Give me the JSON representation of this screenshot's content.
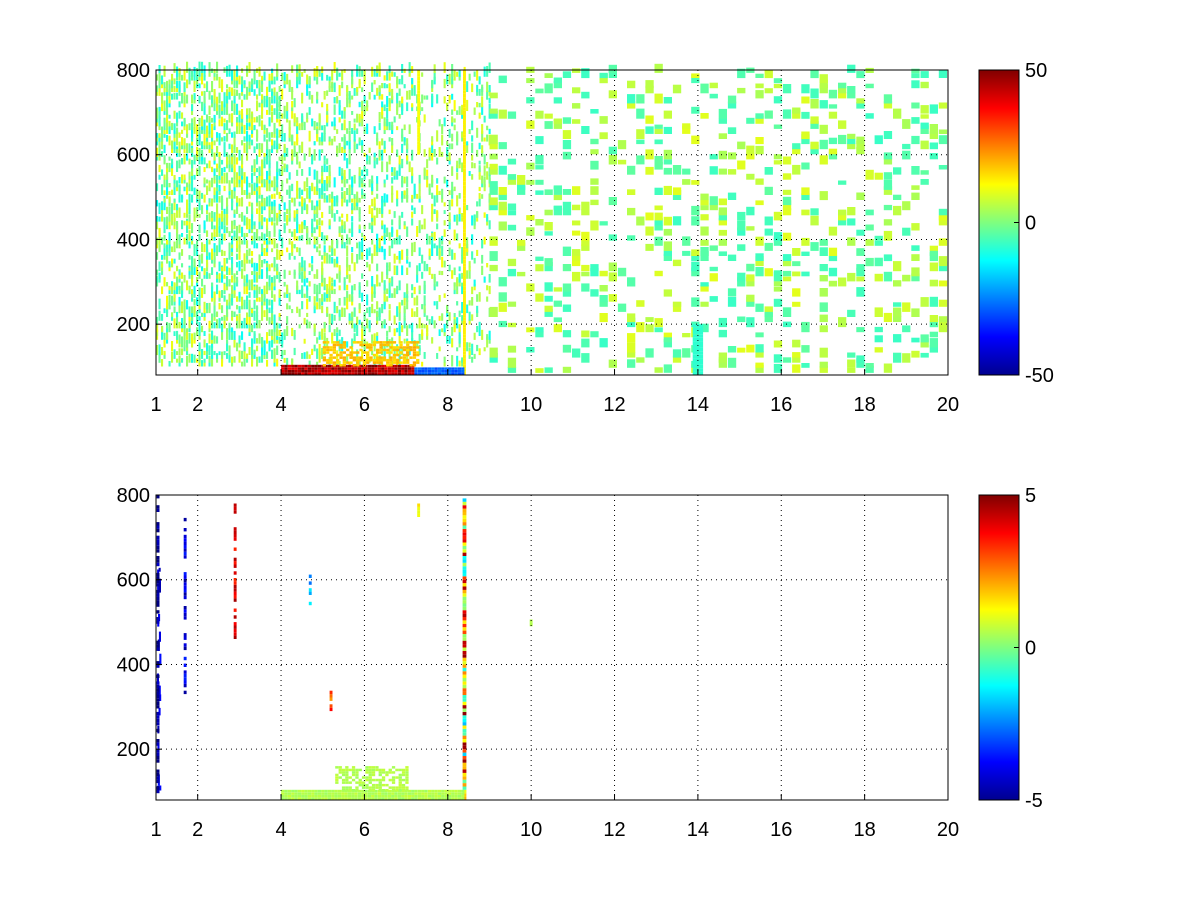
{
  "chart_data": [
    {
      "type": "heatmap",
      "title": "",
      "xlabel": "",
      "ylabel": "",
      "xlim": [
        1,
        20
      ],
      "ylim": [
        80,
        800
      ],
      "xticks": [
        1,
        2,
        4,
        6,
        8,
        10,
        12,
        14,
        16,
        18,
        20
      ],
      "yticks": [
        200,
        400,
        600,
        800
      ],
      "grid": true,
      "colormap": "jet",
      "colorbar": {
        "min": -50,
        "max": 50,
        "ticks": [
          50,
          0,
          -50
        ]
      },
      "description_values": {
        "sparse_scatter_range": [
          -12,
          12
        ],
        "x_dense_region": [
          1,
          9
        ],
        "x_sparse_region": [
          9,
          20
        ]
      },
      "features": [
        {
          "kind": "vertical_band",
          "x": 8.4,
          "y": [
            80,
            800
          ],
          "value": 14
        },
        {
          "kind": "vertical_band",
          "x": 7.3,
          "y": [
            600,
            800
          ],
          "value": 12
        },
        {
          "kind": "low_band_hot",
          "x": [
            4.0,
            7.2
          ],
          "y": [
            80,
            100
          ],
          "value": 45
        },
        {
          "kind": "low_band_warm",
          "x": [
            5.0,
            7.3
          ],
          "y": [
            100,
            160
          ],
          "value": 18
        },
        {
          "kind": "low_band_cold",
          "x": [
            7.2,
            8.4
          ],
          "y": [
            80,
            95
          ],
          "value": -28
        },
        {
          "kind": "cyan_column",
          "x": 14.0,
          "y": [
            80,
            200
          ],
          "value": -8
        }
      ]
    },
    {
      "type": "heatmap",
      "title": "",
      "xlabel": "",
      "ylabel": "",
      "xlim": [
        1,
        20
      ],
      "ylim": [
        80,
        800
      ],
      "xticks": [
        1,
        2,
        4,
        6,
        8,
        10,
        12,
        14,
        16,
        18,
        20
      ],
      "yticks": [
        200,
        400,
        600,
        800
      ],
      "grid": true,
      "colormap": "jet",
      "colorbar": {
        "min": -5,
        "max": 5,
        "ticks": [
          5,
          0,
          -5
        ]
      },
      "features": [
        {
          "kind": "vertical_band_mixed",
          "x": 8.4,
          "y": [
            80,
            790
          ],
          "range": [
            -2,
            5
          ]
        },
        {
          "kind": "low_band_green",
          "x": [
            4.0,
            8.4
          ],
          "y": [
            80,
            100
          ],
          "value": 0.5
        },
        {
          "kind": "low_blob_green",
          "x": [
            5.3,
            7.0
          ],
          "y": [
            100,
            160
          ],
          "value": 0.5
        },
        {
          "kind": "segment",
          "x": 7.3,
          "y": [
            740,
            790
          ],
          "value": 1
        },
        {
          "kind": "segment",
          "x": 4.7,
          "y": [
            540,
            620
          ],
          "value": -2
        },
        {
          "kind": "segment",
          "x": 5.2,
          "y": [
            290,
            360
          ],
          "value": 3
        },
        {
          "kind": "segment",
          "x": 1.7,
          "y": [
            330,
            750
          ],
          "value": -4
        },
        {
          "kind": "segment",
          "x": 1.05,
          "y": [
            80,
            800
          ],
          "value": -5
        },
        {
          "kind": "segment",
          "x": 2.9,
          "y": [
            460,
            780
          ],
          "value": 4
        },
        {
          "kind": "dot",
          "x": 10.0,
          "y": [
            490,
            505
          ],
          "value": 0.5
        }
      ]
    }
  ]
}
